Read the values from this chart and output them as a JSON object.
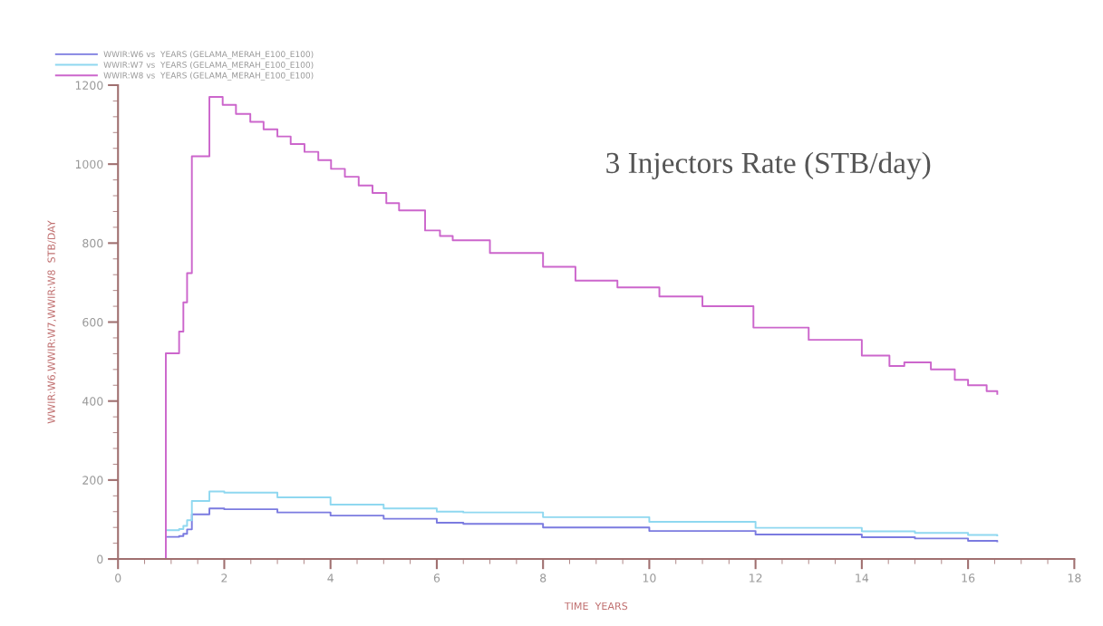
{
  "chart_data": {
    "type": "step",
    "xlabel": "TIME  YEARS",
    "ylabel": "WWIR:W6,WWIR:W7,WWIR:W8  STB/DAY",
    "annotations": [
      "3 Injectors Rate (STB/day)"
    ],
    "xlim": [
      0,
      18
    ],
    "xticks": [
      0,
      2,
      4,
      6,
      8,
      10,
      12,
      14,
      16,
      18
    ],
    "ylim": [
      0,
      1200
    ],
    "yticks": [
      0,
      200,
      400,
      600,
      800,
      1000,
      1200
    ],
    "grid": false,
    "legend": "top left",
    "series": [
      {
        "name": "WWIR:W6 vs  YEARS (GELAMA_MERAH_E100_E100)",
        "color": "#7b7be0",
        "x": [
          0.9,
          1.15,
          1.23,
          1.3,
          1.39,
          1.72,
          2.0,
          3.0,
          4.0,
          5.0,
          6.0,
          6.5,
          8.0,
          10.0,
          12.0,
          14.0,
          15.0,
          16.0,
          16.55
        ],
        "values": [
          56,
          58,
          64,
          75,
          113,
          128,
          126,
          118,
          110,
          102,
          92,
          89,
          80,
          71,
          62,
          55,
          52,
          46,
          45
        ]
      },
      {
        "name": "WWIR:W7 vs  YEARS (GELAMA_MERAH_E100_E100)",
        "color": "#8fd8f0",
        "x": [
          0.9,
          1.15,
          1.23,
          1.3,
          1.39,
          1.72,
          2.0,
          3.0,
          4.0,
          5.0,
          6.0,
          6.5,
          8.0,
          10.0,
          12.0,
          14.0,
          15.0,
          16.0,
          16.55
        ],
        "values": [
          73,
          76,
          84,
          98,
          147,
          171,
          168,
          156,
          138,
          128,
          120,
          118,
          106,
          94,
          79,
          70,
          66,
          61,
          60
        ]
      },
      {
        "name": "WWIR:W8 vs  YEARS (GELAMA_MERAH_E100_E100)",
        "color": "#cc66cc",
        "x": [
          0.9,
          0.9,
          1.15,
          1.23,
          1.3,
          1.39,
          1.72,
          1.97,
          2.22,
          2.49,
          2.74,
          3.0,
          3.25,
          3.51,
          3.77,
          4.01,
          4.27,
          4.53,
          4.79,
          5.05,
          5.29,
          5.78,
          6.06,
          6.3,
          7.0,
          8.0,
          8.61,
          9.4,
          10.19,
          11.0,
          11.96,
          13.0,
          14.0,
          14.52,
          14.8,
          15.3,
          15.75,
          16.0,
          16.35,
          16.55
        ],
        "values": [
          0,
          521,
          576,
          650,
          724,
          1020,
          1170,
          1150,
          1127,
          1107,
          1088,
          1070,
          1051,
          1031,
          1010,
          988,
          968,
          946,
          927,
          901,
          883,
          832,
          818,
          807,
          775,
          740,
          705,
          688,
          665,
          640,
          586,
          555,
          515,
          489,
          498,
          480,
          454,
          440,
          425,
          418
        ]
      }
    ]
  }
}
